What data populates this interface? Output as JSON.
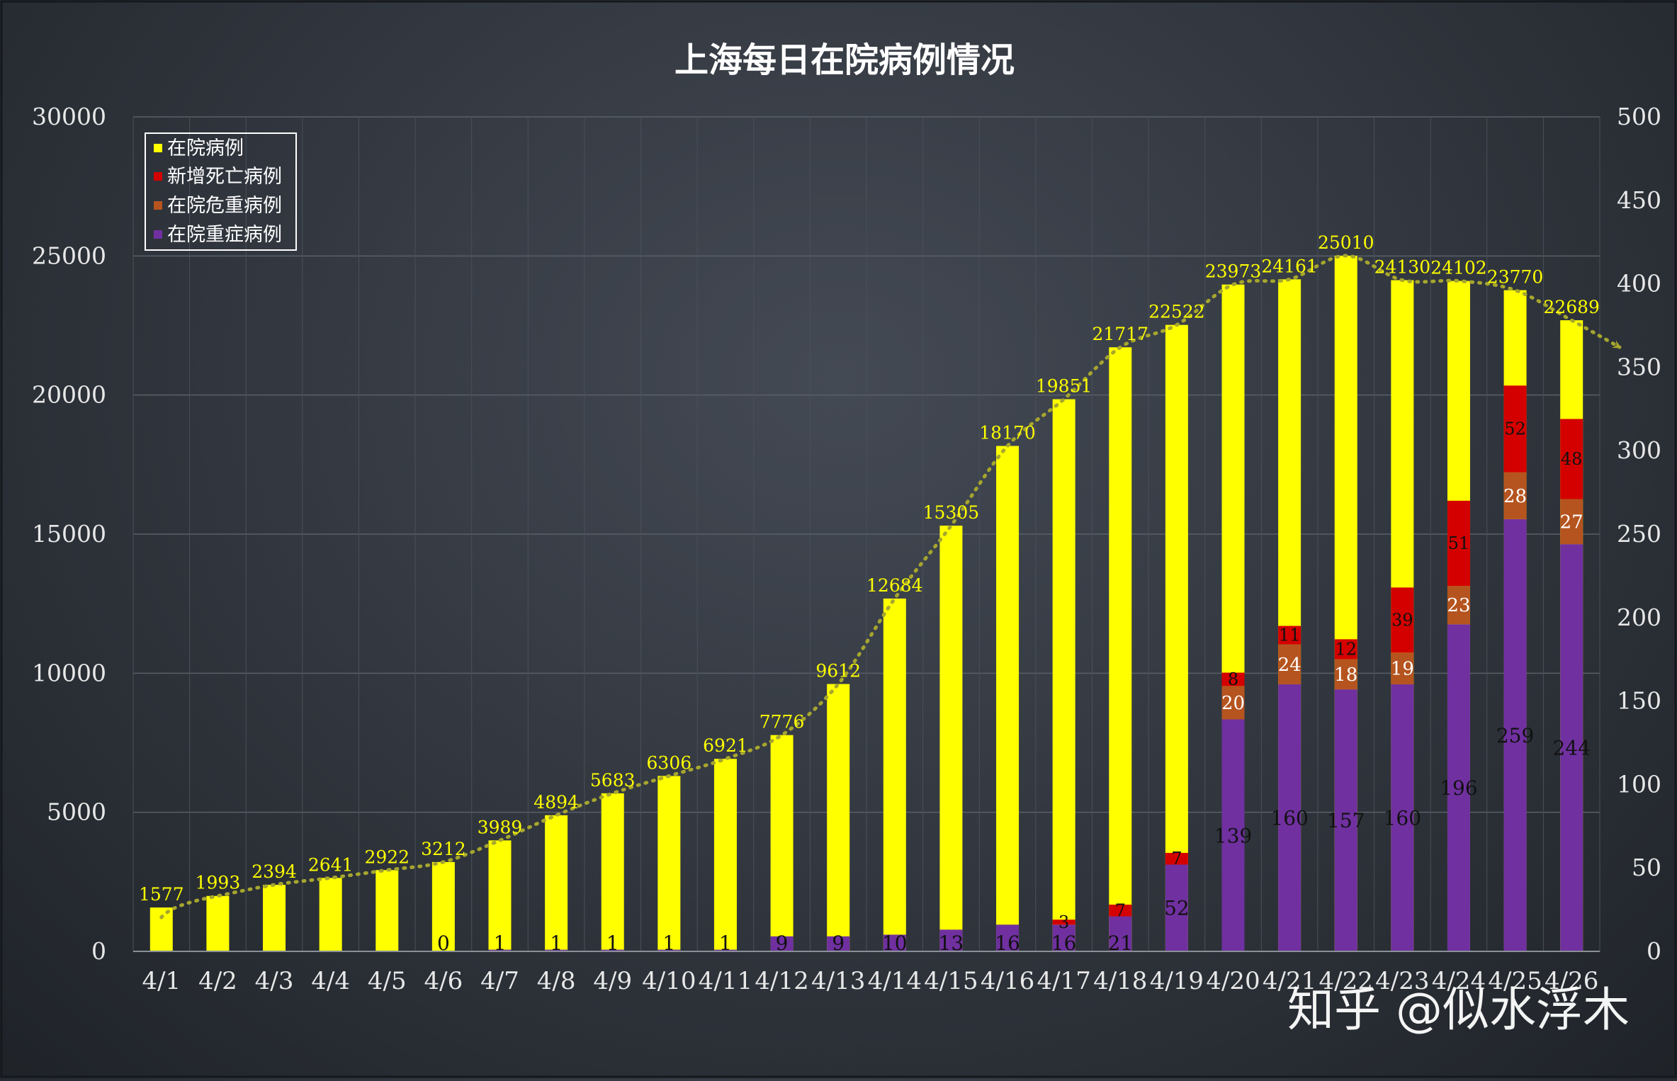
{
  "chart_data": {
    "type": "bar",
    "title": "上海每日在院病例情况",
    "categories": [
      "4/1",
      "4/2",
      "4/3",
      "4/4",
      "4/5",
      "4/6",
      "4/7",
      "4/8",
      "4/9",
      "4/10",
      "4/11",
      "4/12",
      "4/13",
      "4/14",
      "4/15",
      "4/16",
      "4/17",
      "4/18",
      "4/19",
      "4/20",
      "4/21",
      "4/22",
      "4/23",
      "4/24",
      "4/25",
      "4/26"
    ],
    "y_left": {
      "min": 0,
      "max": 30000,
      "ticks": [
        "0",
        "5000",
        "10000",
        "15000",
        "20000",
        "25000",
        "30000"
      ]
    },
    "y_right": {
      "min": 0,
      "max": 500,
      "ticks": [
        "0",
        "50",
        "100",
        "150",
        "200",
        "250",
        "300",
        "350",
        "400",
        "450",
        "500"
      ]
    },
    "series": [
      {
        "name": "在院病例",
        "color": "#ffff00",
        "axis": "left",
        "values": [
          1577,
          1993,
          2394,
          2641,
          2922,
          3212,
          3989,
          4894,
          5683,
          6306,
          6921,
          7776,
          9612,
          12684,
          15305,
          18170,
          19851,
          21717,
          22522,
          23973,
          24161,
          25010,
          24130,
          24102,
          23770,
          22689
        ],
        "labels": [
          "1577",
          "1993",
          "2394",
          "2641",
          "2922",
          "3212",
          "3989",
          "4894",
          "5683",
          "6306",
          "6921",
          "7776",
          "9612",
          "12684",
          "15305",
          "18170",
          "19851",
          "21717",
          "22522",
          "23973",
          "24161",
          "25010",
          "24130",
          "24102",
          "23770",
          "22689"
        ]
      },
      {
        "name": "新增死亡病例",
        "color": "#d40000",
        "axis": "right",
        "stack": "overlay",
        "values": [
          0,
          0,
          0,
          0,
          0,
          0,
          0,
          0,
          0,
          0,
          0,
          0,
          0,
          0,
          0,
          0,
          3,
          7,
          7,
          8,
          11,
          12,
          39,
          51,
          52,
          48
        ],
        "labels": [
          "",
          "",
          "",
          "",
          "",
          "",
          "",
          "",
          "",
          "",
          "",
          "",
          "",
          "",
          "",
          "",
          "3",
          "7",
          "7",
          "8",
          "11",
          "12",
          "39",
          "51",
          "52",
          "48"
        ]
      },
      {
        "name": "在院危重病例",
        "color": "#b5541f",
        "axis": "right",
        "stack": "overlay",
        "values": [
          0,
          0,
          0,
          0,
          0,
          0,
          0,
          0,
          0,
          0,
          0,
          0,
          0,
          0,
          0,
          0,
          0,
          0,
          0,
          20,
          24,
          18,
          19,
          23,
          28,
          27
        ],
        "labels": [
          "",
          "",
          "",
          "",
          "",
          "",
          "",
          "",
          "",
          "",
          "",
          "",
          "",
          "",
          "",
          "",
          "",
          "",
          "",
          "20",
          "24",
          "18",
          "19",
          "23",
          "28",
          "27"
        ]
      },
      {
        "name": "在院重症病例",
        "color": "#7030a0",
        "axis": "right",
        "stack": "overlay",
        "values": [
          0,
          0,
          0,
          0,
          0,
          0,
          1,
          1,
          1,
          1,
          1,
          9,
          9,
          10,
          13,
          16,
          16,
          21,
          52,
          139,
          160,
          157,
          160,
          196,
          259,
          244
        ],
        "labels": [
          "",
          "",
          "",
          "",
          "",
          "0",
          "1",
          "1",
          "1",
          "1",
          "1",
          "9",
          "9",
          "10",
          "13",
          "16",
          "16",
          "21",
          "52",
          "139",
          "160",
          "157",
          "160",
          "196",
          "259",
          "244"
        ]
      }
    ],
    "legend": {
      "position": "top-left"
    },
    "trendline": {
      "style": "dotted",
      "color": "#a6a62e",
      "series": "在院病例"
    },
    "grid": true
  },
  "watermark": "知乎 @似水浮木"
}
